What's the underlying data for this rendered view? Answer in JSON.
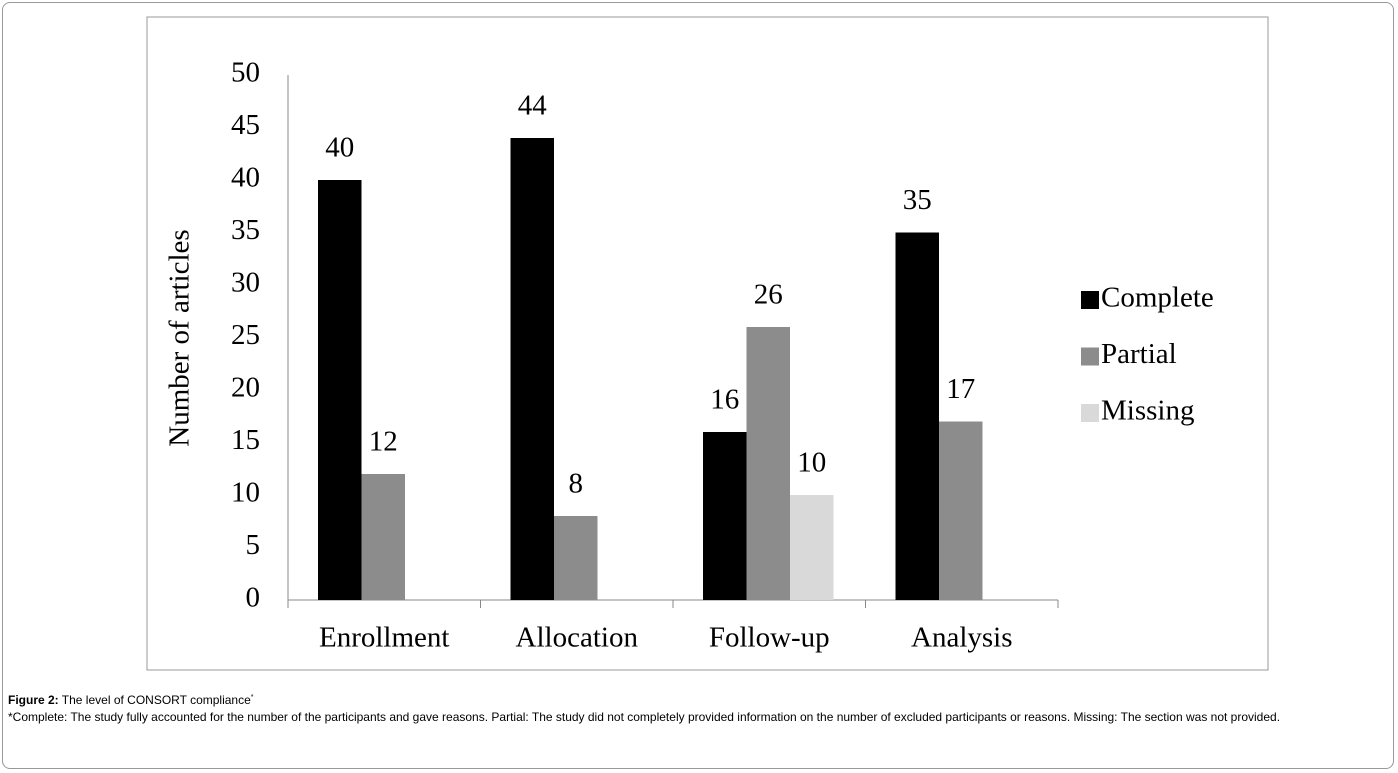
{
  "chart_data": {
    "type": "bar",
    "caption_label": "Figure 2:",
    "caption": "The level of CONSORT compliance",
    "caption_mark": "*",
    "note": "*Complete: The study fully accounted for the number of the participants and gave reasons.  Partial: The study did not completely provided information on the number of excluded participants or reasons.  Missing: The section was not provided.",
    "y_label": "Number of articles",
    "categories": [
      "Enrollment",
      "Allocation",
      "Follow-up",
      "Analysis"
    ],
    "series": [
      {
        "name": "Complete",
        "color": "#000000",
        "values": [
          40,
          44,
          16,
          35
        ]
      },
      {
        "name": "Partial",
        "color": "#8c8c8c",
        "values": [
          12,
          8,
          26,
          17
        ]
      },
      {
        "name": "Missing",
        "color": "#d9d9d9",
        "values": [
          null,
          null,
          10,
          null
        ]
      }
    ],
    "ylim": [
      0,
      50
    ],
    "yticks": [
      0,
      5,
      10,
      15,
      20,
      25,
      30,
      35,
      40,
      45,
      50
    ],
    "grid": false,
    "legend": "right"
  }
}
